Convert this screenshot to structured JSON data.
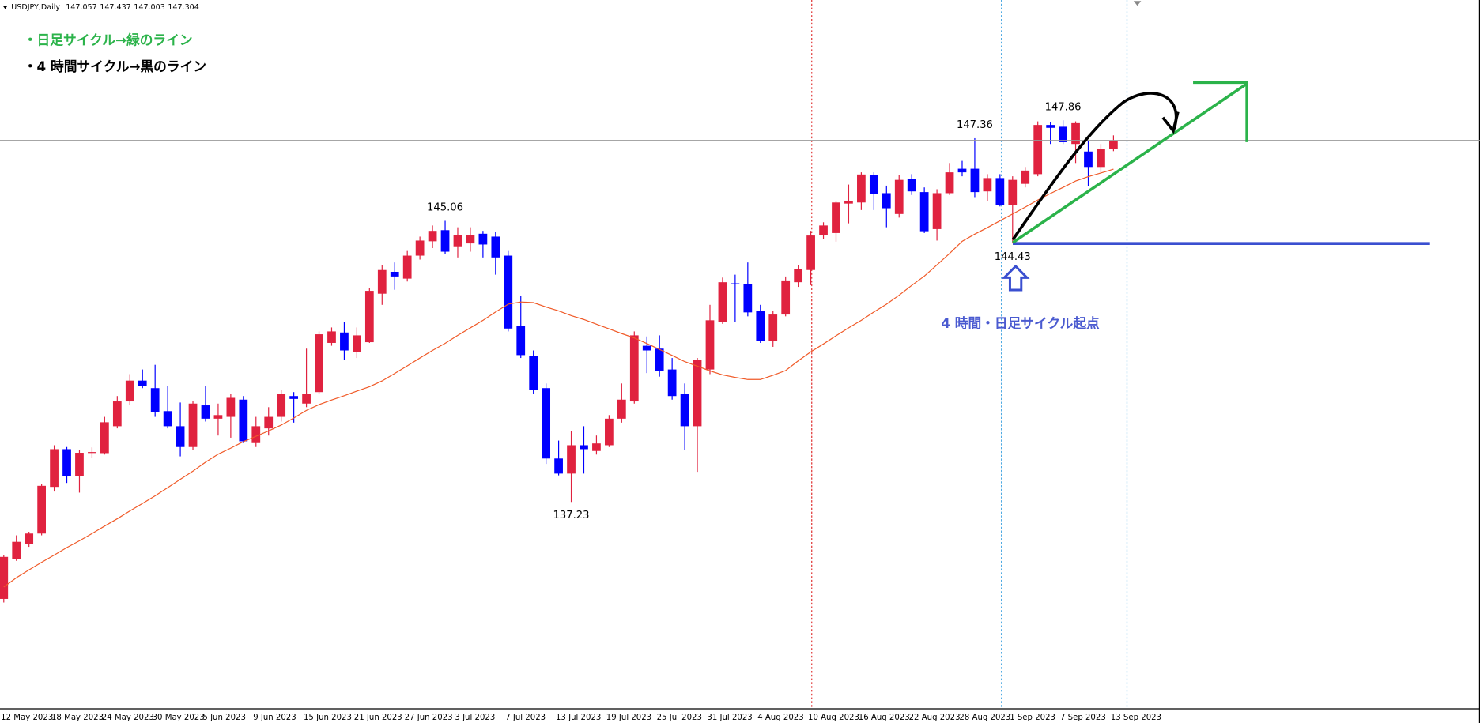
{
  "chart_data": {
    "type": "candlestick",
    "title": "USDJPY,Daily",
    "ohlc": [
      147.057,
      147.437,
      147.003,
      147.304
    ],
    "up_color": "#e0223f",
    "down_color": "#0000ff",
    "ylim": [
      131.47,
      151.21
    ],
    "categories": [
      "12 May 2023",
      null,
      null,
      null,
      "18 May 2023",
      null,
      null,
      null,
      "24 May 2023",
      null,
      null,
      null,
      "30 May 2023",
      null,
      null,
      null,
      "5 Jun 2023",
      null,
      null,
      null,
      "9 Jun 2023",
      null,
      null,
      null,
      "15 Jun 2023",
      null,
      null,
      null,
      "21 Jun 2023",
      null,
      null,
      null,
      "27 Jun 2023",
      null,
      null,
      null,
      "3 Jul 2023",
      null,
      null,
      null,
      "7 Jul 2023",
      null,
      null,
      null,
      "13 Jul 2023",
      null,
      null,
      null,
      "19 Jul 2023",
      null,
      null,
      null,
      "25 Jul 2023",
      null,
      null,
      null,
      "31 Jul 2023",
      null,
      null,
      null,
      "4 Aug 2023",
      null,
      null,
      null,
      "10 Aug 2023",
      null,
      null,
      null,
      "16 Aug 2023",
      null,
      null,
      null,
      "22 Aug 2023",
      null,
      null,
      null,
      "28 Aug 2023",
      null,
      null,
      null,
      "1 Sep 2023",
      null,
      null,
      null,
      "7 Sep 2023",
      null,
      null,
      null,
      "13 Sep 2023"
    ],
    "open": [
      134.53,
      135.64,
      136.05,
      136.35,
      137.65,
      138.7,
      137.96,
      138.6,
      138.59,
      139.34,
      140.03,
      140.61,
      140.4,
      139.76,
      139.34,
      138.76,
      139.92,
      139.55,
      139.6,
      140.08,
      138.87,
      139.28,
      139.6,
      140.18,
      139.97,
      140.29,
      141.66,
      141.95,
      141.4,
      141.68,
      143.03,
      143.64,
      143.45,
      144.09,
      144.49,
      144.8,
      144.35,
      144.43,
      144.7,
      144.62,
      144.09,
      142.14,
      141.29,
      140.4,
      138.44,
      138.02,
      138.81,
      138.65,
      138.81,
      139.55,
      140.03,
      141.58,
      141.5,
      140.92,
      140.24,
      139.34,
      140.92,
      142.24,
      143.32,
      143.3,
      142.56,
      141.71,
      142.45,
      143.35,
      143.69,
      144.67,
      144.72,
      145.54,
      145.57,
      146.33,
      145.83,
      145.25,
      146.22,
      145.86,
      144.83,
      145.83,
      146.51,
      146.51,
      145.88,
      146.25,
      145.51,
      146.09,
      146.36,
      147.73,
      147.68,
      147.2,
      146.99,
      146.56,
      147.06
    ],
    "high": [
      135.75,
      136.3,
      136.4,
      137.73,
      138.81,
      138.76,
      138.68,
      138.75,
      139.6,
      140.18,
      140.79,
      140.92,
      141.05,
      140.45,
      140.0,
      140.03,
      140.45,
      139.97,
      140.24,
      140.18,
      139.6,
      139.87,
      140.34,
      140.29,
      141.5,
      141.98,
      142.09,
      142.24,
      142.09,
      143.19,
      143.82,
      143.9,
      144.22,
      144.62,
      144.93,
      145.06,
      144.88,
      144.88,
      144.78,
      144.75,
      144.22,
      142.98,
      141.45,
      140.53,
      138.94,
      139.2,
      139.34,
      139.08,
      139.65,
      140.53,
      141.98,
      141.84,
      141.87,
      141.24,
      140.53,
      141.24,
      142.72,
      143.48,
      143.56,
      143.9,
      142.72,
      142.56,
      143.51,
      143.82,
      144.78,
      145.02,
      145.62,
      146.07,
      146.41,
      146.41,
      146.04,
      146.33,
      146.36,
      145.99,
      145.94,
      146.67,
      146.73,
      147.36,
      146.36,
      146.36,
      146.3,
      146.56,
      147.83,
      147.8,
      147.86,
      147.83,
      147.3,
      147.2,
      147.44
    ],
    "low": [
      134.43,
      135.59,
      135.98,
      136.3,
      137.52,
      137.76,
      137.49,
      138.45,
      138.55,
      139.28,
      139.92,
      140.4,
      139.6,
      139.28,
      138.5,
      138.68,
      139.47,
      139.08,
      139.02,
      138.87,
      138.76,
      139.08,
      139.47,
      139.44,
      139.87,
      140.24,
      141.58,
      141.19,
      141.24,
      141.66,
      142.72,
      143.14,
      143.37,
      143.98,
      144.3,
      144.14,
      144.04,
      144.2,
      144.04,
      143.56,
      141.98,
      141.24,
      140.24,
      138.29,
      137.97,
      137.23,
      138.02,
      138.55,
      138.76,
      139.44,
      139.97,
      140.82,
      140.72,
      140.08,
      138.68,
      138.07,
      140.79,
      142.19,
      142.24,
      142.4,
      141.66,
      141.55,
      142.4,
      143.22,
      143.27,
      144.56,
      144.48,
      144.99,
      145.36,
      145.36,
      144.88,
      145.15,
      145.78,
      144.72,
      144.51,
      145.78,
      146.3,
      145.72,
      145.62,
      145.46,
      144.43,
      145.99,
      146.3,
      147.2,
      147.2,
      146.67,
      146.02,
      146.41,
      147.0
    ],
    "close": [
      135.7,
      136.12,
      136.35,
      137.68,
      138.7,
      137.94,
      138.6,
      138.62,
      139.45,
      140.03,
      140.61,
      140.45,
      139.73,
      139.34,
      138.76,
      139.97,
      139.55,
      139.65,
      140.13,
      138.92,
      139.34,
      139.6,
      140.24,
      140.1,
      140.24,
      141.9,
      141.98,
      141.45,
      141.87,
      143.11,
      143.69,
      143.51,
      144.09,
      144.51,
      144.78,
      144.2,
      144.67,
      144.67,
      144.4,
      144.04,
      142.06,
      141.32,
      140.34,
      138.44,
      138.02,
      138.81,
      138.7,
      138.86,
      139.55,
      140.08,
      141.87,
      141.45,
      140.87,
      140.18,
      139.34,
      141.19,
      142.29,
      143.35,
      143.3,
      142.51,
      141.71,
      142.45,
      143.4,
      143.72,
      144.65,
      144.93,
      145.57,
      145.62,
      146.35,
      145.8,
      145.41,
      146.2,
      145.88,
      144.77,
      145.83,
      146.41,
      146.41,
      145.86,
      146.25,
      145.51,
      146.2,
      146.46,
      147.73,
      147.65,
      147.25,
      147.78,
      146.56,
      147.06,
      147.3
    ],
    "ma": {
      "color": "#f05a28",
      "values": [
        134.86,
        135.12,
        135.34,
        135.55,
        135.75,
        135.96,
        136.15,
        136.35,
        136.56,
        136.76,
        136.98,
        137.19,
        137.4,
        137.63,
        137.86,
        138.09,
        138.34,
        138.56,
        138.73,
        138.91,
        139.06,
        139.21,
        139.37,
        139.57,
        139.78,
        139.94,
        140.07,
        140.19,
        140.32,
        140.44,
        140.6,
        140.81,
        141.02,
        141.24,
        141.45,
        141.65,
        141.87,
        142.08,
        142.29,
        142.52,
        142.74,
        142.8,
        142.78,
        142.66,
        142.55,
        142.42,
        142.31,
        142.18,
        142.05,
        141.92,
        141.8,
        141.64,
        141.48,
        141.31,
        141.14,
        141.01,
        140.88,
        140.77,
        140.7,
        140.64,
        140.64,
        140.76,
        140.89,
        141.16,
        141.41,
        141.63,
        141.86,
        142.08,
        142.29,
        142.52,
        142.74,
        142.99,
        143.26,
        143.52,
        143.83,
        144.15,
        144.49,
        144.69,
        144.87,
        145.06,
        145.25,
        145.44,
        145.64,
        145.82,
        145.99,
        146.17,
        146.29,
        146.39,
        146.5
      ]
    },
    "price_labels": [
      145.06,
      137.23,
      147.36,
      147.86,
      144.43
    ],
    "annotations": [
      "・日足サイクル→緑のライン",
      "・4 時間サイクル→黒のライン",
      "4 時間・日足サイクル起点"
    ]
  }
}
